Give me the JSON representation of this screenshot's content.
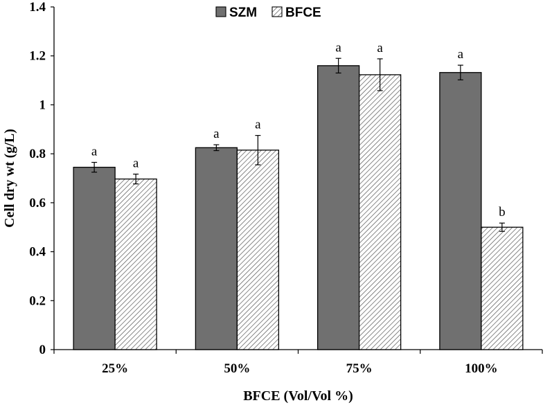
{
  "chart_data": {
    "type": "bar",
    "categories": [
      "25%",
      "50%",
      "75%",
      "100%"
    ],
    "series": [
      {
        "name": "SZM",
        "values": [
          0.745,
          0.825,
          1.16,
          1.132
        ],
        "errors": [
          0.02,
          0.012,
          0.03,
          0.03
        ],
        "labels": [
          "a",
          "a",
          "a",
          "a"
        ],
        "color": "#707070",
        "pattern": "solid"
      },
      {
        "name": "BFCE",
        "values": [
          0.697,
          0.815,
          1.123,
          0.5
        ],
        "errors": [
          0.02,
          0.06,
          0.065,
          0.017
        ],
        "labels": [
          "a",
          "a",
          "a",
          "b"
        ],
        "color": "#ffffff",
        "pattern": "diagonal-hatch"
      }
    ],
    "title": "",
    "xlabel": "BFCE (Vol/Vol %)",
    "ylabel": "Cell dry wt (g/L)",
    "ylim": [
      0,
      1.4
    ],
    "yticks": [
      "0",
      "0.2",
      "0.4",
      "0.6",
      "0.8",
      "1",
      "1.2",
      "1.4"
    ],
    "grid": false,
    "legend_position": "top-center"
  }
}
